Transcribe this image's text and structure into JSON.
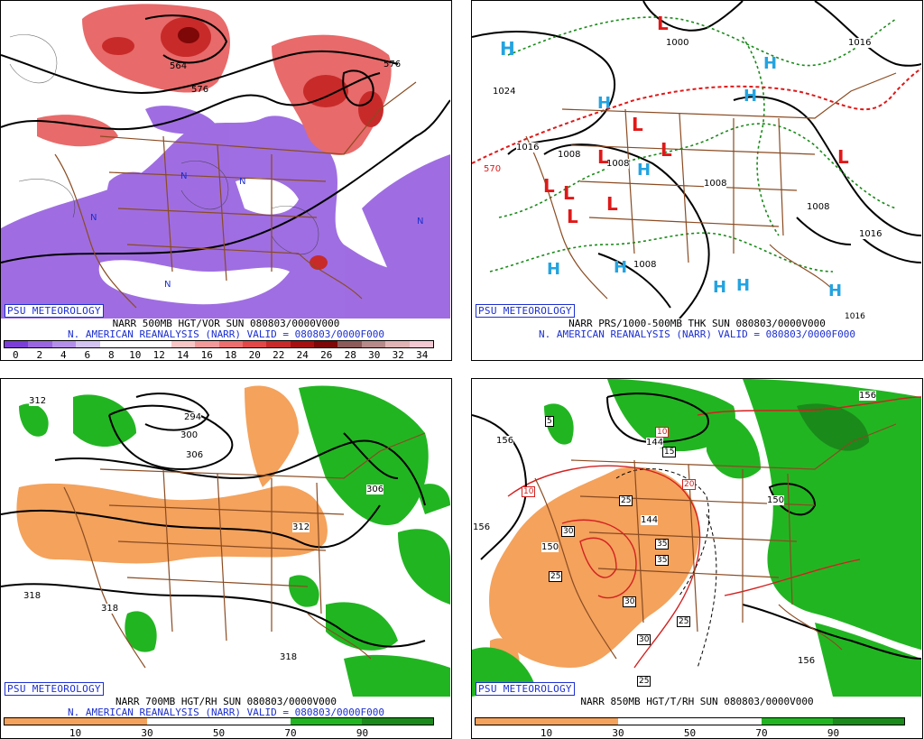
{
  "panels": {
    "p500": {
      "badge": "PSU METEOROLOGY",
      "line1": "NARR 500MB HGT/VOR SUN 080803/0000V000",
      "line2": "N. AMERICAN REANALYSIS (NARR) VALID = 080803/0000F000",
      "scale": [
        "0",
        "2",
        "4",
        "6",
        "8",
        "10",
        "12",
        "14",
        "16",
        "18",
        "20",
        "22",
        "24",
        "26",
        "28",
        "30",
        "32",
        "34"
      ],
      "scale_colors": [
        "#7b3fd8",
        "#9a66e0",
        "#b48fea",
        "#d4c4f2",
        "#ffffff",
        "#ffffff",
        "#ffffff",
        "#f9c6c6",
        "#f29a9a",
        "#ec6f6f",
        "#e24848",
        "#c82a2a",
        "#a51010",
        "#7e0707",
        "#8d5a5a",
        "#b78a8a",
        "#e0b4b4",
        "#f4c9d4"
      ],
      "contour_labels": [
        "564",
        "576",
        "576",
        "N",
        "N",
        "N",
        "N",
        "N"
      ]
    },
    "pmslp": {
      "badge": "PSU METEOROLOGY",
      "line1": "NARR PRS/1000-500MB THK SUN 080803/0000V000",
      "line2": "N. AMERICAN REANALYSIS (NARR) VALID = 080803/0000F000",
      "isobar_labels": [
        "1024",
        "1016",
        "1000",
        "1016",
        "1008",
        "1008",
        "1008",
        "1008",
        "1008",
        "1016",
        "1016",
        "570"
      ],
      "high_label": "H",
      "low_label": "L"
    },
    "p700": {
      "badge": "PSU METEOROLOGY",
      "line1": "NARR 700MB HGT/RH SUN 080803/0000V000",
      "line2": "N. AMERICAN REANALYSIS (NARR) VALID = 080803/0000F000",
      "scale": [
        "10",
        "30",
        "50",
        "70",
        "90"
      ],
      "contour_labels": [
        "312",
        "294",
        "300",
        "306",
        "306",
        "312",
        "318",
        "318",
        "318"
      ]
    },
    "p850": {
      "badge": "PSU METEOROLOGY",
      "line1": "NARR 850MB HGT/T/RH SUN 080803/0000V000",
      "scale": [
        "10",
        "30",
        "50",
        "70",
        "90"
      ],
      "contour_labels": [
        "156",
        "156",
        "150",
        "144",
        "144",
        "150",
        "156",
        "156"
      ],
      "temp_labels": [
        "5",
        "10",
        "10",
        "15",
        "20",
        "25",
        "30",
        "35",
        "35",
        "30",
        "30",
        "25",
        "25",
        "25"
      ]
    }
  },
  "colors": {
    "vort_purple": "#9a66e0",
    "vort_red": "#e04848",
    "rh_dry": "#f4a25c",
    "rh_moist": "#22b522",
    "map_brown": "#8a4b22",
    "label_blue": "#1c2fd0",
    "high_blue": "#24a3e0",
    "low_red": "#e01818"
  }
}
